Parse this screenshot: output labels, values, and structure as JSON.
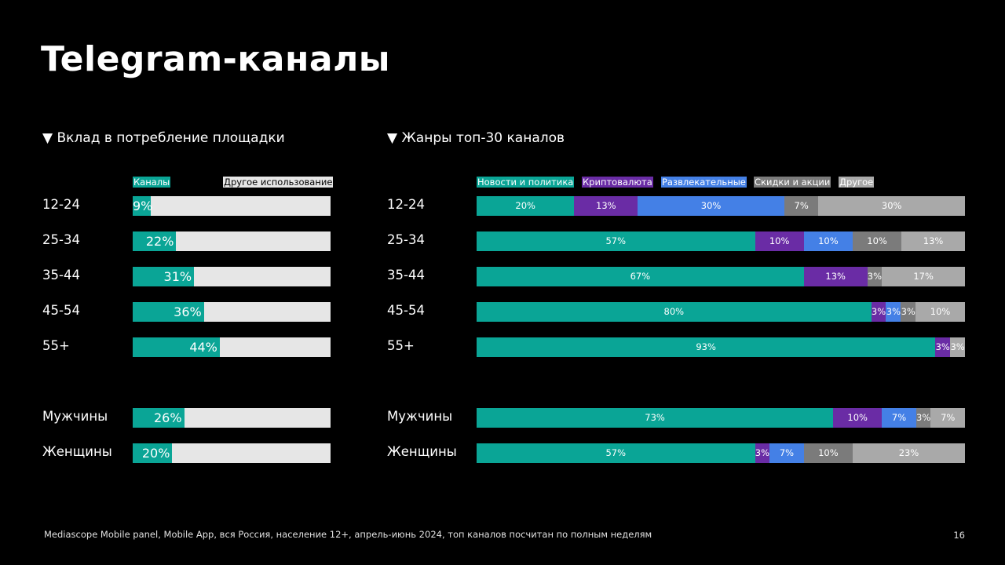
{
  "title": "Telegram-каналы",
  "left_header": "▼ Вклад в потребление площадки",
  "right_header": "▼ Жанры топ-30 каналов",
  "legend_left": [
    {
      "label": "Каналы",
      "color": "#0aa596",
      "text_color": "#ffffff"
    },
    {
      "label": "Другое использование",
      "color": "#e6e6e6",
      "text_color": "#000000"
    }
  ],
  "legend_right": [
    {
      "label": "Новости и политика",
      "color": "#0aa596"
    },
    {
      "label": "Криптовалюта",
      "color": "#6a2ca5"
    },
    {
      "label": "Развлекательные",
      "color": "#4480e6"
    },
    {
      "label": "Скидки и акции",
      "color": "#7b7b7b"
    },
    {
      "label": "Другое",
      "color": "#a9a9a9"
    }
  ],
  "chart_data": [
    {
      "type": "bar",
      "orientation": "horizontal",
      "stacked": true,
      "title": "▼ Вклад в потребление площадки",
      "categories": [
        "12-24",
        "25-34",
        "35-44",
        "45-54",
        "55+",
        "Мужчины",
        "Женщины"
      ],
      "series": [
        {
          "name": "Каналы",
          "values": [
            9,
            22,
            31,
            36,
            44,
            26,
            20
          ],
          "labels": [
            "9%",
            "22%",
            "31%",
            "36%",
            "44%",
            "26%",
            "20%"
          ]
        },
        {
          "name": "Другое использование",
          "values": [
            91,
            78,
            69,
            64,
            56,
            74,
            80
          ]
        }
      ],
      "xlim": [
        0,
        100
      ]
    },
    {
      "type": "bar",
      "orientation": "horizontal",
      "stacked": true,
      "title": "▼ Жанры топ-30 каналов",
      "categories": [
        "12-24",
        "25-34",
        "35-44",
        "45-54",
        "55+",
        "Мужчины",
        "Женщины"
      ],
      "series": [
        {
          "name": "Новости и политика",
          "values": [
            20,
            57,
            67,
            80,
            93,
            73,
            57
          ]
        },
        {
          "name": "Криптовалюта",
          "values": [
            13,
            10,
            13,
            3,
            3,
            10,
            3
          ]
        },
        {
          "name": "Развлекательные",
          "values": [
            30,
            10,
            0,
            3,
            0,
            7,
            7
          ]
        },
        {
          "name": "Скидки и акции",
          "values": [
            7,
            10,
            3,
            3,
            0,
            3,
            10
          ]
        },
        {
          "name": "Другое",
          "values": [
            30,
            13,
            17,
            10,
            3,
            7,
            23
          ]
        }
      ],
      "xlim": [
        0,
        100
      ]
    }
  ],
  "footnote": "Mediascope Mobile panel, Mobile App, вся Россия, население 12+, апрель-июнь 2024, топ каналов посчитан по полным неделям",
  "page_number": "16"
}
